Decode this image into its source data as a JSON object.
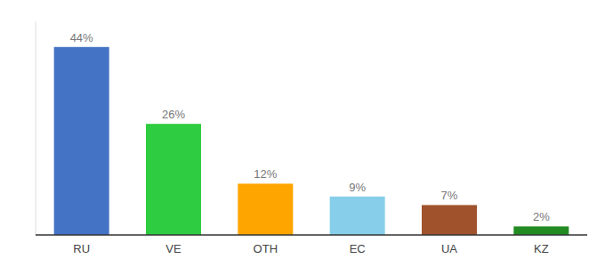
{
  "chart_data": {
    "type": "bar",
    "categories": [
      "RU",
      "VE",
      "OTH",
      "EC",
      "UA",
      "KZ"
    ],
    "values": [
      44,
      26,
      12,
      9,
      7,
      2
    ],
    "value_labels": [
      "44%",
      "26%",
      "12%",
      "9%",
      "7%",
      "2%"
    ],
    "colors": [
      "#4472C4",
      "#2ECC40",
      "#FFA500",
      "#87CEEB",
      "#A0522D",
      "#228B22"
    ],
    "ylim": [
      0,
      50
    ],
    "data_labels": true,
    "tick_labels": "x",
    "grid": false
  }
}
